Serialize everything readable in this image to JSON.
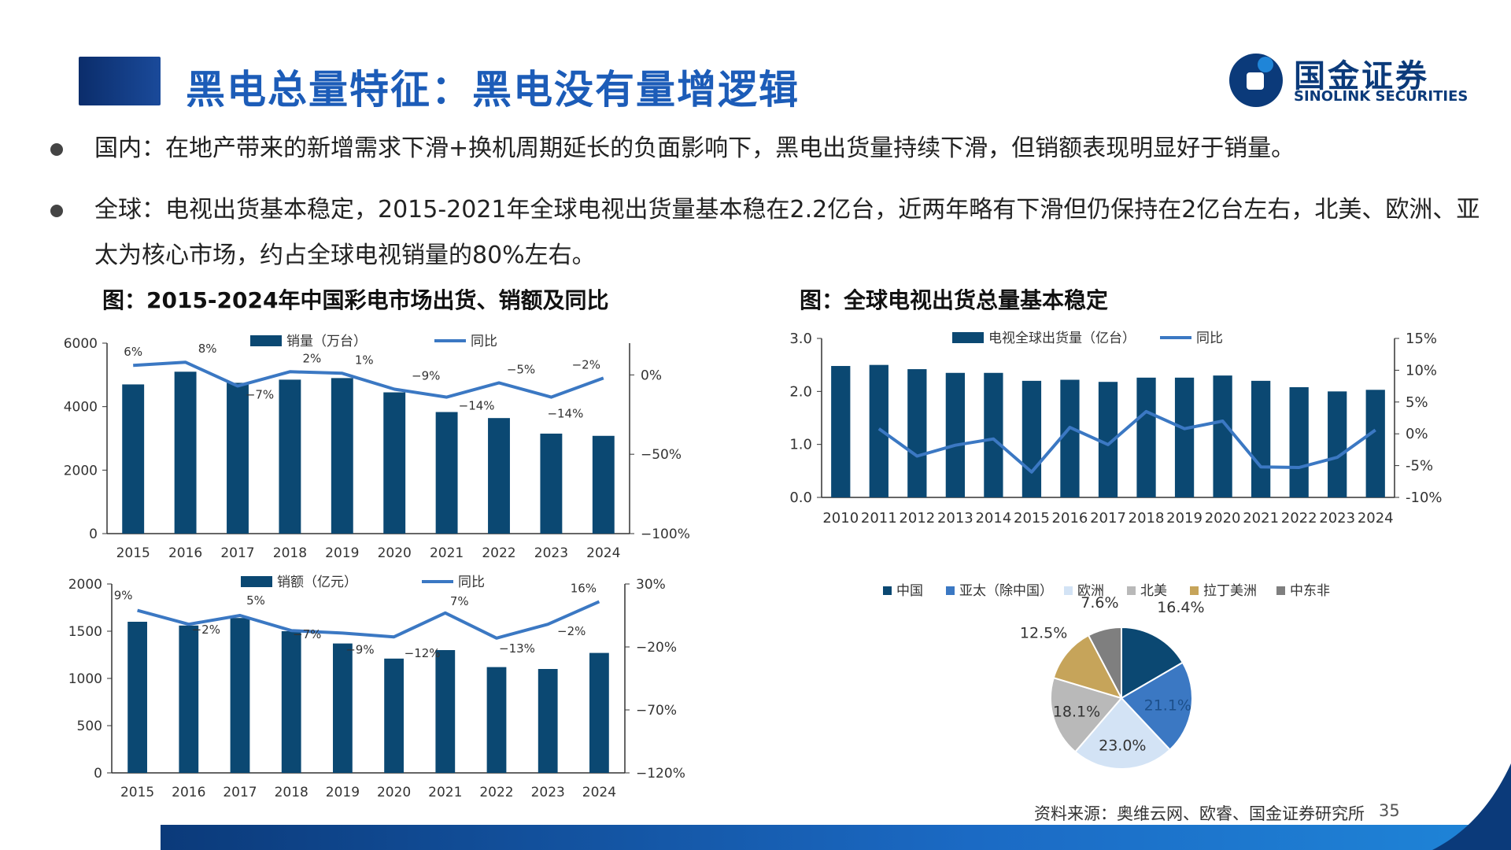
{
  "header": {
    "title": "黑电总量特征：黑电没有量增逻辑",
    "logo_cn": "国金证券",
    "logo_en": "SINOLINK SECURITIES"
  },
  "bullets": [
    "国内：在地产带来的新增需求下滑+换机周期延长的负面影响下，黑电出货量持续下滑，但销额表现明显好于销量。",
    "全球：电视出货基本稳定，2015-2021年全球电视出货量基本稳在2.2亿台，近两年略有下滑但仍保持在2亿台左右，北美、欧洲、亚太为核心市场，约占全球电视销量的80%左右。"
  ],
  "figure_titles": {
    "left": "图：2015-2024年中国彩电市场出货、销额及同比",
    "right": "图：全球电视出货总量基本稳定"
  },
  "footer": {
    "source": "资料来源：奥维云网、欧睿、国金证券研究所",
    "page": "35"
  },
  "colors": {
    "bar": "#0b4872",
    "line": "#3b78c3",
    "title": "#1c5cb8"
  },
  "chart_data": [
    {
      "id": "china_volume",
      "type": "bar",
      "categories": [
        "2015",
        "2016",
        "2017",
        "2018",
        "2019",
        "2020",
        "2021",
        "2022",
        "2023",
        "2024"
      ],
      "series": [
        {
          "name": "销量（万台）",
          "type": "bar",
          "axis": "left",
          "values": [
            4700,
            5100,
            4750,
            4850,
            4900,
            4450,
            3830,
            3640,
            3150,
            3080
          ]
        },
        {
          "name": "同比",
          "type": "line",
          "axis": "right",
          "values": [
            6,
            8,
            -7,
            2,
            1,
            -9,
            -14,
            -5,
            -14,
            -2
          ],
          "labels": [
            "6%",
            "8%",
            "−7%",
            "2%",
            "1%",
            "−9%",
            "−14%",
            "−5%",
            "−14%",
            "−2%"
          ]
        }
      ],
      "y_left": {
        "ylim": [
          0,
          6000
        ],
        "ticks": [
          "0",
          "2000",
          "4000",
          "6000"
        ]
      },
      "y_right": {
        "ylim": [
          -100,
          20
        ],
        "ticks": [
          "−100%",
          "−50%",
          "0%"
        ]
      }
    },
    {
      "id": "china_sales",
      "type": "bar",
      "categories": [
        "2015",
        "2016",
        "2017",
        "2018",
        "2019",
        "2020",
        "2021",
        "2022",
        "2023",
        "2024"
      ],
      "series": [
        {
          "name": "销额（亿元）",
          "type": "bar",
          "axis": "left",
          "values": [
            1600,
            1560,
            1640,
            1500,
            1370,
            1210,
            1300,
            1120,
            1100,
            1270
          ]
        },
        {
          "name": "同比",
          "type": "line",
          "axis": "right",
          "values": [
            9,
            -2,
            5,
            -7,
            -9,
            -12,
            7,
            -13,
            -2,
            16
          ],
          "labels": [
            "9%",
            "−2%",
            "5%",
            "−7%",
            "−9%",
            "−12%",
            "7%",
            "−13%",
            "−2%",
            "16%"
          ]
        }
      ],
      "y_left": {
        "ylim": [
          0,
          2000
        ],
        "ticks": [
          "0",
          "500",
          "1000",
          "1500",
          "2000"
        ]
      },
      "y_right": {
        "ylim": [
          -120,
          30
        ],
        "ticks": [
          "−120%",
          "−70%",
          "−20%",
          "30%"
        ]
      }
    },
    {
      "id": "global_shipments",
      "type": "bar",
      "categories": [
        "2010",
        "2011",
        "2012",
        "2013",
        "2014",
        "2015",
        "2016",
        "2017",
        "2018",
        "2019",
        "2020",
        "2021",
        "2022",
        "2023",
        "2024"
      ],
      "series": [
        {
          "name": "电视全球出货量（亿台）",
          "type": "bar",
          "axis": "left",
          "values": [
            2.48,
            2.5,
            2.42,
            2.35,
            2.35,
            2.2,
            2.22,
            2.18,
            2.26,
            2.26,
            2.3,
            2.2,
            2.08,
            2.0,
            2.03
          ]
        },
        {
          "name": "同比",
          "type": "line",
          "axis": "right",
          "values": [
            null,
            0.8,
            -3.5,
            -1.8,
            -0.8,
            -6,
            1,
            -1.7,
            3.5,
            0.8,
            2,
            -5.2,
            -5.3,
            -3.7,
            0.6
          ]
        }
      ],
      "y_left": {
        "ylim": [
          0,
          3
        ],
        "ticks": [
          "0.0",
          "1.0",
          "2.0",
          "3.0"
        ]
      },
      "y_right": {
        "ylim": [
          -10,
          15
        ],
        "ticks": [
          "-10%",
          "-5%",
          "0%",
          "5%",
          "10%",
          "15%"
        ]
      }
    },
    {
      "id": "global_region_share",
      "type": "pie",
      "legend": [
        "中国",
        "亚太（除中国）",
        "欧洲",
        "北美",
        "拉丁美洲",
        "中东非"
      ],
      "values": [
        16.4,
        21.1,
        23.0,
        18.1,
        12.5,
        7.6
      ],
      "labels": [
        "16.4%",
        "21.1%",
        "23.0%",
        "18.1%",
        "12.5%",
        "7.6%"
      ],
      "slice_colors": [
        "#0b4872",
        "#3b78c3",
        "#d3e3f5",
        "#b9b9b9",
        "#c6a45a",
        "#7f7f7f"
      ]
    }
  ]
}
